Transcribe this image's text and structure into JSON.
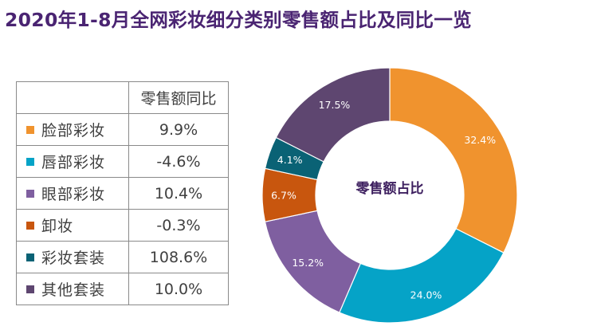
{
  "title": "2020年1-8月全网彩妆细分类别零售额占比及同比一览",
  "table": {
    "header": "零售额同比",
    "rows": [
      {
        "category": "脸部彩妆",
        "yoy": "9.9%"
      },
      {
        "category": "唇部彩妆",
        "yoy": "-4.6%"
      },
      {
        "category": "眼部彩妆",
        "yoy": "10.4%"
      },
      {
        "category": "卸妆",
        "yoy": "-0.3%"
      },
      {
        "category": "彩妆套装",
        "yoy": "108.6%"
      },
      {
        "category": "其他套装",
        "yoy": "10.0%"
      }
    ]
  },
  "chart_data": {
    "type": "pie",
    "title": "零售额占比",
    "categories": [
      "脸部彩妆",
      "唇部彩妆",
      "眼部彩妆",
      "卸妆",
      "彩妆套装",
      "其他套装"
    ],
    "values": [
      32.4,
      24.0,
      15.2,
      6.7,
      4.1,
      17.5
    ],
    "labels": [
      "32.4%",
      "24.0%",
      "15.2%",
      "6.7%",
      "4.1%",
      "17.5%"
    ],
    "yoy_growth": [
      9.9,
      -4.6,
      10.4,
      -0.3,
      108.6,
      10.0
    ],
    "colors": [
      "#f0932e",
      "#05a3c7",
      "#7f5fa0",
      "#c8560e",
      "#0a6275",
      "#5e4670"
    ],
    "legend": "left table",
    "donut": true
  }
}
